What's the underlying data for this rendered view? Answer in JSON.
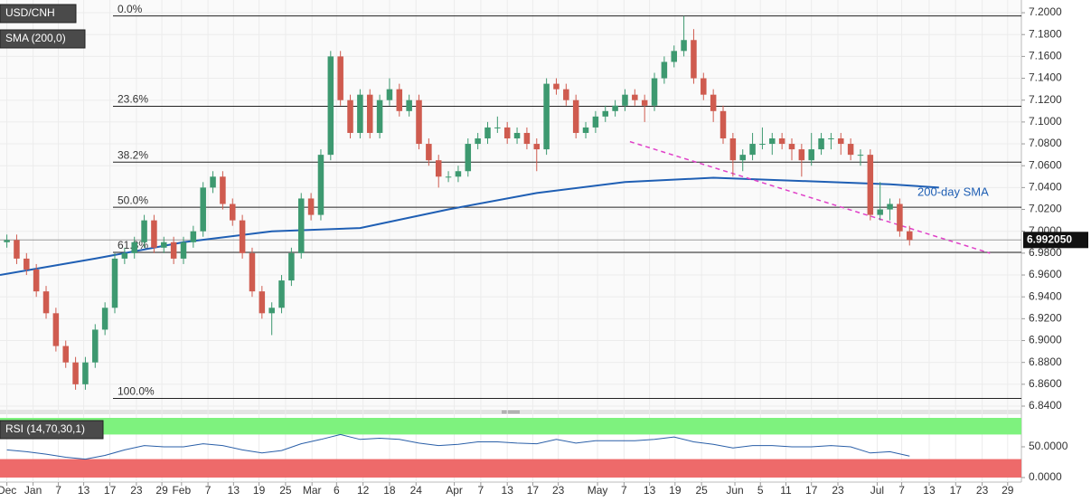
{
  "chart_data": {
    "type": "candlestick",
    "symbol": "USD/CNH",
    "up_color": "#3d9970",
    "down_color": "#cf5b4f",
    "xlim": [
      -0.7,
      103.4
    ],
    "xticks": [
      {
        "value": 0,
        "label": "Dec"
      },
      {
        "value": 2.67,
        "label": "Jan"
      },
      {
        "value": 5.25,
        "label": "7"
      },
      {
        "value": 7.83,
        "label": "13"
      },
      {
        "value": 10.5,
        "label": "17"
      },
      {
        "value": 13.2,
        "label": "23"
      },
      {
        "value": 15.8,
        "label": "29"
      },
      {
        "value": 17.8,
        "label": "Feb"
      },
      {
        "value": 20.5,
        "label": "7"
      },
      {
        "value": 23.1,
        "label": "13"
      },
      {
        "value": 25.7,
        "label": "19"
      },
      {
        "value": 28.4,
        "label": "25"
      },
      {
        "value": 31.1,
        "label": "Mar"
      },
      {
        "value": 33.6,
        "label": "6"
      },
      {
        "value": 36.3,
        "label": "12"
      },
      {
        "value": 39.0,
        "label": "18"
      },
      {
        "value": 41.7,
        "label": "24"
      },
      {
        "value": 45.6,
        "label": "Apr"
      },
      {
        "value": 48.3,
        "label": "7"
      },
      {
        "value": 51.0,
        "label": "13"
      },
      {
        "value": 53.6,
        "label": "17"
      },
      {
        "value": 56.2,
        "label": "23"
      },
      {
        "value": 60.2,
        "label": "May"
      },
      {
        "value": 62.9,
        "label": "7"
      },
      {
        "value": 65.5,
        "label": "13"
      },
      {
        "value": 68.1,
        "label": "19"
      },
      {
        "value": 70.8,
        "label": "25"
      },
      {
        "value": 74.2,
        "label": "Jun"
      },
      {
        "value": 76.8,
        "label": "5"
      },
      {
        "value": 79.4,
        "label": "11"
      },
      {
        "value": 82.0,
        "label": "17"
      },
      {
        "value": 84.7,
        "label": "23"
      },
      {
        "value": 88.7,
        "label": "Jul"
      },
      {
        "value": 91.2,
        "label": "7"
      },
      {
        "value": 94.0,
        "label": "13"
      },
      {
        "value": 96.7,
        "label": "17"
      },
      {
        "value": 99.4,
        "label": "23"
      },
      {
        "value": 102.0,
        "label": "29"
      }
    ],
    "ylim": [
      6.8367,
      7.2075
    ],
    "yticks": [
      {
        "value": 6.84,
        "label": "6.8400"
      },
      {
        "value": 6.86,
        "label": "6.8600"
      },
      {
        "value": 6.88,
        "label": "6.8800"
      },
      {
        "value": 6.9,
        "label": "6.9000"
      },
      {
        "value": 6.92,
        "label": "6.9200"
      },
      {
        "value": 6.94,
        "label": "6.9400"
      },
      {
        "value": 6.96,
        "label": "6.9600"
      },
      {
        "value": 6.98,
        "label": "6.9800"
      },
      {
        "value": 7.0,
        "label": "7.0000"
      },
      {
        "value": 7.02,
        "label": "7.0200"
      },
      {
        "value": 7.04,
        "label": "7.0400"
      },
      {
        "value": 7.06,
        "label": "7.0600"
      },
      {
        "value": 7.08,
        "label": "7.0800"
      },
      {
        "value": 7.1,
        "label": "7.1000"
      },
      {
        "value": 7.12,
        "label": "7.1200"
      },
      {
        "value": 7.14,
        "label": "7.1400"
      },
      {
        "value": 7.16,
        "label": "7.1600"
      },
      {
        "value": 7.18,
        "label": "7.1800"
      },
      {
        "value": 7.2,
        "label": "7.2000"
      }
    ],
    "grid": true,
    "ohlc": [
      [
        6.99,
        6.997,
        6.985,
        6.992
      ],
      [
        6.992,
        6.997,
        6.97,
        6.975
      ],
      [
        6.975,
        6.98,
        6.96,
        6.965
      ],
      [
        6.965,
        6.97,
        6.94,
        6.945
      ],
      [
        6.945,
        6.95,
        6.92,
        6.925
      ],
      [
        6.925,
        6.93,
        6.89,
        6.895
      ],
      [
        6.895,
        6.9,
        6.875,
        6.88
      ],
      [
        6.88,
        6.885,
        6.855,
        6.86
      ],
      [
        6.86,
        6.885,
        6.855,
        6.88
      ],
      [
        6.88,
        6.915,
        6.875,
        6.91
      ],
      [
        6.91,
        6.935,
        6.905,
        6.93
      ],
      [
        6.93,
        6.98,
        6.925,
        6.975
      ],
      [
        6.975,
        6.985,
        6.97,
        6.98
      ],
      [
        6.98,
        6.995,
        6.975,
        6.99
      ],
      [
        6.99,
        7.015,
        6.985,
        7.01
      ],
      [
        7.01,
        7.015,
        6.98,
        6.985
      ],
      [
        6.985,
        6.995,
        6.98,
        6.99
      ],
      [
        6.99,
        6.995,
        6.97,
        6.975
      ],
      [
        6.975,
        6.995,
        6.97,
        6.99
      ],
      [
        6.99,
        7.005,
        6.985,
        7.0
      ],
      [
        7.0,
        7.045,
        6.995,
        7.04
      ],
      [
        7.04,
        7.055,
        7.035,
        7.05
      ],
      [
        7.05,
        7.055,
        7.02,
        7.025
      ],
      [
        7.025,
        7.03,
        7.005,
        7.01
      ],
      [
        7.01,
        7.015,
        6.975,
        6.98
      ],
      [
        6.98,
        6.985,
        6.94,
        6.945
      ],
      [
        6.945,
        6.95,
        6.92,
        6.925
      ],
      [
        6.925,
        6.935,
        6.905,
        6.93
      ],
      [
        6.93,
        6.96,
        6.925,
        6.955
      ],
      [
        6.955,
        6.985,
        6.95,
        6.98
      ],
      [
        6.98,
        7.035,
        6.975,
        7.03
      ],
      [
        7.03,
        7.035,
        7.01,
        7.015
      ],
      [
        7.015,
        7.075,
        7.01,
        7.07
      ],
      [
        7.07,
        7.165,
        7.065,
        7.16
      ],
      [
        7.16,
        7.165,
        7.115,
        7.12
      ],
      [
        7.12,
        7.125,
        7.085,
        7.09
      ],
      [
        7.09,
        7.13,
        7.085,
        7.125
      ],
      [
        7.125,
        7.13,
        7.085,
        7.09
      ],
      [
        7.09,
        7.125,
        7.085,
        7.12
      ],
      [
        7.12,
        7.14,
        7.115,
        7.13
      ],
      [
        7.13,
        7.135,
        7.105,
        7.11
      ],
      [
        7.11,
        7.125,
        7.105,
        7.12
      ],
      [
        7.12,
        7.125,
        7.075,
        7.08
      ],
      [
        7.08,
        7.085,
        7.06,
        7.065
      ],
      [
        7.065,
        7.07,
        7.04,
        7.05
      ],
      [
        7.05,
        7.055,
        7.045,
        7.05
      ],
      [
        7.05,
        7.06,
        7.045,
        7.055
      ],
      [
        7.055,
        7.085,
        7.05,
        7.08
      ],
      [
        7.08,
        7.09,
        7.075,
        7.085
      ],
      [
        7.085,
        7.1,
        7.08,
        7.095
      ],
      [
        7.095,
        7.105,
        7.09,
        7.095
      ],
      [
        7.095,
        7.1,
        7.08,
        7.085
      ],
      [
        7.085,
        7.095,
        7.08,
        7.09
      ],
      [
        7.09,
        7.095,
        7.075,
        7.08
      ],
      [
        7.08,
        7.085,
        7.055,
        7.075
      ],
      [
        7.075,
        7.14,
        7.07,
        7.135
      ],
      [
        7.135,
        7.14,
        7.125,
        7.13
      ],
      [
        7.13,
        7.135,
        7.115,
        7.12
      ],
      [
        7.12,
        7.125,
        7.085,
        7.09
      ],
      [
        7.09,
        7.1,
        7.085,
        7.095
      ],
      [
        7.095,
        7.11,
        7.09,
        7.105
      ],
      [
        7.105,
        7.115,
        7.1,
        7.11
      ],
      [
        7.11,
        7.12,
        7.105,
        7.115
      ],
      [
        7.115,
        7.13,
        7.11,
        7.125
      ],
      [
        7.125,
        7.13,
        7.115,
        7.12
      ],
      [
        7.12,
        7.125,
        7.1,
        7.115
      ],
      [
        7.115,
        7.145,
        7.11,
        7.14
      ],
      [
        7.14,
        7.16,
        7.135,
        7.155
      ],
      [
        7.155,
        7.17,
        7.15,
        7.165
      ],
      [
        7.165,
        7.197,
        7.16,
        7.175
      ],
      [
        7.175,
        7.185,
        7.135,
        7.14
      ],
      [
        7.14,
        7.145,
        7.12,
        7.125
      ],
      [
        7.125,
        7.13,
        7.1,
        7.11
      ],
      [
        7.11,
        7.115,
        7.08,
        7.085
      ],
      [
        7.085,
        7.09,
        7.05,
        7.065
      ],
      [
        7.065,
        7.075,
        7.055,
        7.07
      ],
      [
        7.07,
        7.09,
        7.065,
        7.08
      ],
      [
        7.08,
        7.095,
        7.075,
        7.08
      ],
      [
        7.08,
        7.09,
        7.07,
        7.085
      ],
      [
        7.085,
        7.09,
        7.075,
        7.08
      ],
      [
        7.08,
        7.085,
        7.065,
        7.075
      ],
      [
        7.075,
        7.08,
        7.05,
        7.065
      ],
      [
        7.065,
        7.09,
        7.06,
        7.075
      ],
      [
        7.075,
        7.09,
        7.07,
        7.085
      ],
      [
        7.085,
        7.09,
        7.075,
        7.085
      ],
      [
        7.085,
        7.09,
        7.07,
        7.08
      ],
      [
        7.08,
        7.085,
        7.065,
        7.07
      ],
      [
        7.07,
        7.075,
        7.06,
        7.07
      ],
      [
        7.07,
        7.075,
        7.01,
        7.015
      ],
      [
        7.015,
        7.045,
        7.01,
        7.02
      ],
      [
        7.02,
        7.03,
        7.01,
        7.025
      ],
      [
        7.025,
        7.03,
        6.995,
        7.0
      ],
      [
        7.0,
        7.005,
        6.987,
        6.992
      ]
    ],
    "sma": {
      "name": "SMA (200,0)",
      "color": "#1f5fb4",
      "x": [
        -0.7,
        9,
        18,
        27,
        36,
        45,
        54,
        63,
        72,
        81,
        90,
        95
      ],
      "values": [
        6.96,
        6.975,
        6.99,
        7.0,
        7.003,
        7.02,
        7.035,
        7.045,
        7.049,
        7.046,
        7.043,
        7.04
      ]
    },
    "annotation": "200-day SMA",
    "trendline": {
      "color": "#e040c8",
      "x": [
        63.5,
        100.2
      ],
      "values": [
        7.082,
        6.98
      ]
    },
    "fib_levels": [
      {
        "value": 7.197,
        "label": "0.0%"
      },
      {
        "value": 7.1144,
        "label": "23.6%"
      },
      {
        "value": 7.0633,
        "label": "38.2%"
      },
      {
        "value": 7.022,
        "label": "50.0%"
      },
      {
        "value": 6.9807,
        "label": "61.8%"
      },
      {
        "value": 6.847,
        "label": "100.0%"
      }
    ],
    "last_price": {
      "value": 6.99205,
      "label": "6.992050"
    },
    "rsi": {
      "name": "RSI (14,70,30,1)",
      "color": "#2a5fa8",
      "x": [
        0,
        2,
        4,
        6,
        8,
        10,
        12,
        14,
        16,
        18,
        20,
        22,
        24,
        26,
        28,
        30,
        32,
        34,
        36,
        38,
        40,
        42,
        44,
        46,
        48,
        50,
        52,
        54,
        56,
        58,
        60,
        62,
        64,
        66,
        68,
        70,
        72,
        74,
        76,
        78,
        80,
        82,
        84,
        86,
        88,
        90,
        92
      ],
      "values": [
        45,
        42,
        38,
        33,
        30,
        36,
        45,
        52,
        50,
        50,
        55,
        52,
        45,
        40,
        44,
        55,
        62,
        70,
        62,
        64,
        62,
        56,
        52,
        54,
        58,
        58,
        56,
        55,
        62,
        56,
        60,
        60,
        60,
        62,
        66,
        58,
        54,
        48,
        52,
        52,
        50,
        50,
        52,
        50,
        40,
        42,
        35
      ],
      "ylim": [
        -3,
        100
      ],
      "yticks": [
        {
          "value": 0,
          "label": "0.0000"
        },
        {
          "value": 50,
          "label": "50.0000"
        }
      ],
      "upper": 70,
      "lower": 30,
      "upper_color": "#7ef27e",
      "lower_color": "#ee6a6a"
    }
  }
}
